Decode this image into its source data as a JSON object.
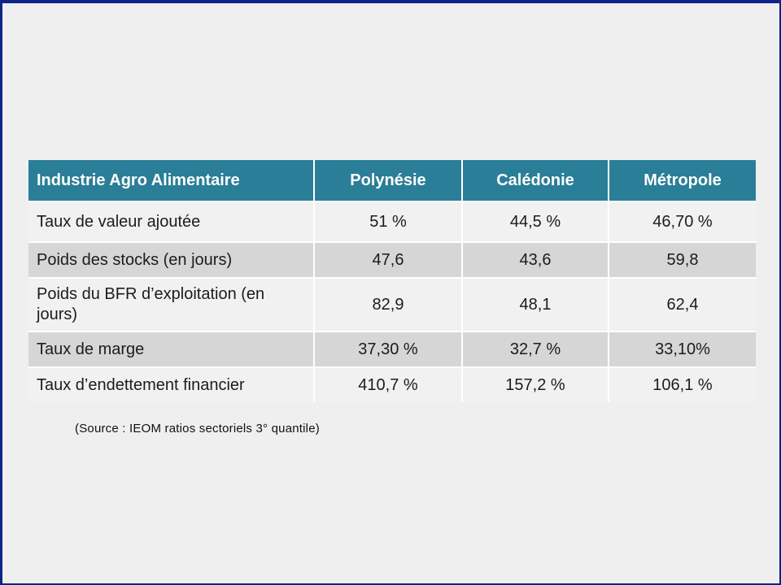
{
  "theme": {
    "slide_background": "#efefef",
    "border_color": "#0e2489",
    "header_background": "#2a7e97",
    "header_text_color": "#ffffff",
    "row_light": "#f1f1f1",
    "row_dark": "#d6d6d6",
    "body_text_color": "#1c1c1c"
  },
  "table": {
    "columns": [
      "Industrie Agro Alimentaire",
      "Polynésie",
      "Calédonie",
      "Métropole"
    ],
    "rows": [
      {
        "shade": "light",
        "cells": [
          "Taux de valeur ajoutée",
          "51 %",
          "44,5 %",
          "46,70 %"
        ]
      },
      {
        "shade": "dark",
        "cells": [
          "Poids des stocks (en jours)",
          "47,6",
          "43,6",
          "59,8"
        ]
      },
      {
        "shade": "light",
        "cells": [
          "Poids du BFR d’exploitation (en jours)",
          "82,9",
          "48,1",
          "62,4"
        ]
      },
      {
        "shade": "dark",
        "cells": [
          "Taux de marge",
          "37,30 %",
          "32,7 %",
          "33,10%"
        ]
      },
      {
        "shade": "light",
        "cells": [
          "Taux d’endettement financier",
          "410,7 %",
          "157,2 %",
          "106,1 %"
        ]
      }
    ]
  },
  "source_note": "(Source : IEOM ratios sectoriels 3° quantile)"
}
